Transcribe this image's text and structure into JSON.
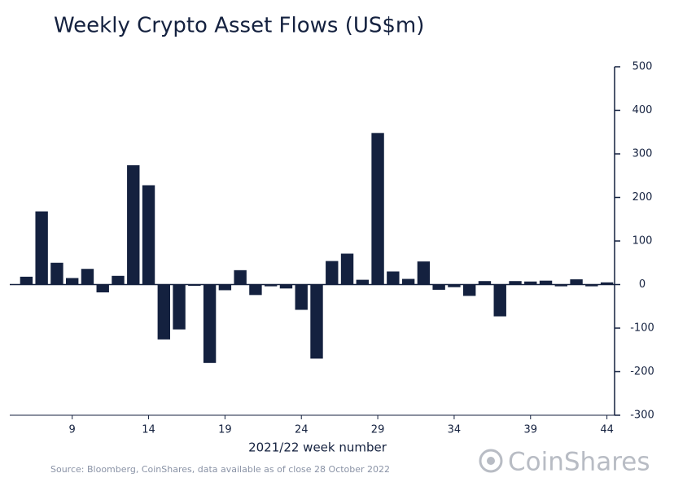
{
  "chart_data": {
    "type": "bar",
    "title": "Weekly Crypto Asset Flows (US$m)",
    "x_label": "2021/22 week number",
    "source": "Source: Bloomberg, CoinShares, data available as of close 28 October 2022",
    "brand": "CoinShares",
    "color": "#14213f",
    "categories": [
      null,
      null,
      null,
      "9",
      null,
      null,
      null,
      null,
      "14",
      null,
      null,
      null,
      null,
      "19",
      null,
      null,
      null,
      null,
      "24",
      null,
      null,
      null,
      null,
      "29",
      null,
      null,
      null,
      null,
      "34",
      null,
      null,
      null,
      null,
      "39",
      null,
      null,
      null,
      null,
      "44"
    ],
    "values": [
      18,
      168,
      50,
      15,
      36,
      -18,
      20,
      274,
      228,
      -126,
      -103,
      -3,
      -180,
      -13,
      33,
      -24,
      -4,
      -9,
      -58,
      -170,
      54,
      71,
      11,
      348,
      30,
      13,
      53,
      -12,
      -6,
      -26,
      8,
      -73,
      8,
      7,
      9,
      -4,
      12,
      -4,
      5
    ],
    "ylim": [
      -300,
      500
    ],
    "yticks": [
      500,
      400,
      300,
      200,
      100,
      0,
      {
        "value": -100,
        "label": "-100"
      },
      {
        "value": -200,
        "label": "-200"
      },
      {
        "value": -300,
        "label": "-300"
      }
    ],
    "y_axis_side": "right"
  }
}
